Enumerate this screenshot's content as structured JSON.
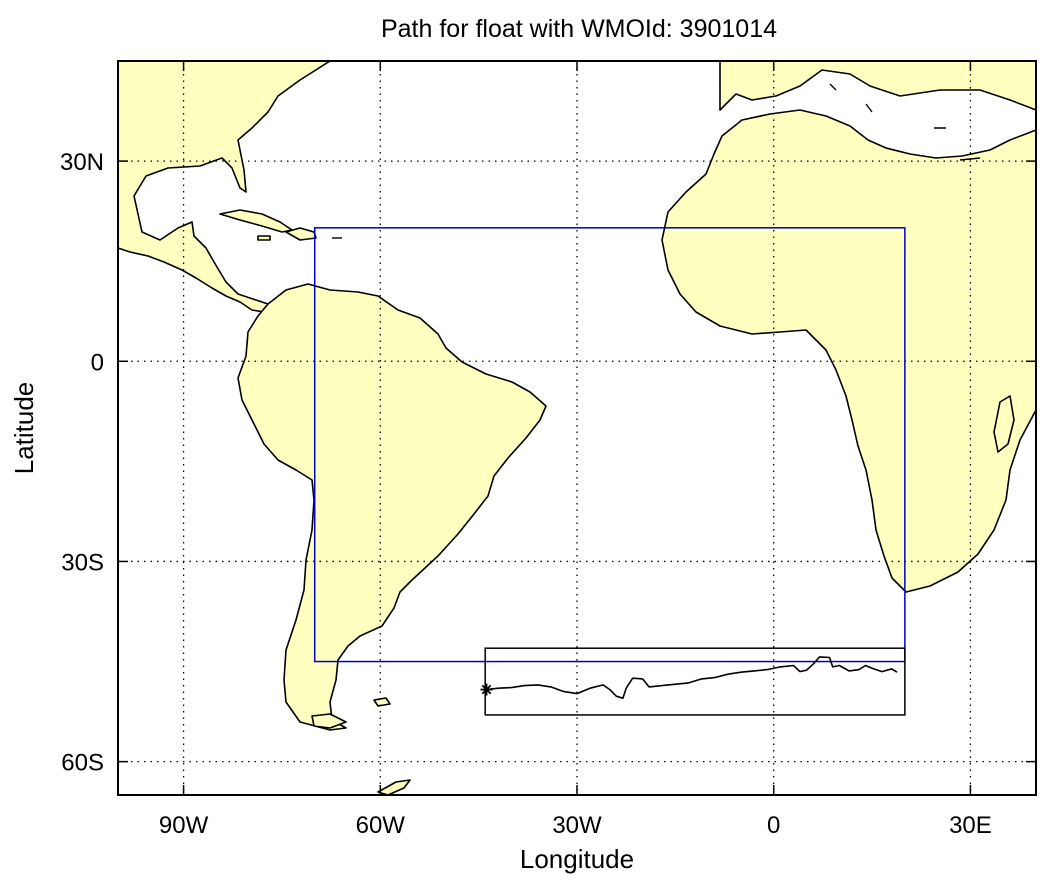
{
  "map": {
    "title": "Path for float with WMOId: 3901014",
    "xlabel": "Longitude",
    "ylabel": "Latitude",
    "lon_range": [
      -100,
      40
    ],
    "lat_range": [
      -65,
      45
    ],
    "x_ticks": [
      {
        "lon": -90,
        "label": "90W"
      },
      {
        "lon": -60,
        "label": "60W"
      },
      {
        "lon": -30,
        "label": "30W"
      },
      {
        "lon": 0,
        "label": "0"
      },
      {
        "lon": 30,
        "label": "30E"
      }
    ],
    "y_ticks": [
      {
        "lat": 30,
        "label": "30N"
      },
      {
        "lat": 0,
        "label": "0"
      },
      {
        "lat": -30,
        "label": "30S"
      },
      {
        "lat": -60,
        "label": "60S"
      }
    ],
    "grid": true,
    "colors": {
      "land": "#ffffc0",
      "ocean": "#ffffff",
      "region_box": "#0000cc",
      "track_box": "#000000",
      "track": "#000000"
    },
    "region_box": {
      "lon": [
        -70,
        20
      ],
      "lat": [
        -45,
        20
      ]
    },
    "track_box": {
      "lon": [
        -44,
        20
      ],
      "lat": [
        -53,
        -43
      ]
    },
    "float_track": [
      [
        -43.8,
        -49.2
      ],
      [
        -42,
        -49.0
      ],
      [
        -40,
        -48.9
      ],
      [
        -38,
        -48.6
      ],
      [
        -36,
        -48.5
      ],
      [
        -34,
        -48.8
      ],
      [
        -32,
        -49.5
      ],
      [
        -30,
        -49.8
      ],
      [
        -28,
        -49.0
      ],
      [
        -26,
        -48.5
      ],
      [
        -25,
        -49.2
      ],
      [
        -24,
        -50.2
      ],
      [
        -23,
        -50.5
      ],
      [
        -22.5,
        -49.0
      ],
      [
        -21.5,
        -47.5
      ],
      [
        -20,
        -47.6
      ],
      [
        -19,
        -48.8
      ],
      [
        -17,
        -48.6
      ],
      [
        -15,
        -48.4
      ],
      [
        -13,
        -48.2
      ],
      [
        -11,
        -47.6
      ],
      [
        -9,
        -47.4
      ],
      [
        -7,
        -46.9
      ],
      [
        -5,
        -46.6
      ],
      [
        -3,
        -46.4
      ],
      [
        -1,
        -46.2
      ],
      [
        1,
        -45.8
      ],
      [
        3,
        -45.6
      ],
      [
        4,
        -46.5
      ],
      [
        5,
        -46.3
      ],
      [
        6,
        -45.4
      ],
      [
        7,
        -44.3
      ],
      [
        8.5,
        -44.4
      ],
      [
        9,
        -45.8
      ],
      [
        10,
        -45.6
      ],
      [
        11.5,
        -46.4
      ],
      [
        13,
        -46.2
      ],
      [
        14,
        -45.6
      ],
      [
        15,
        -46.0
      ],
      [
        16.5,
        -46.5
      ],
      [
        18,
        -46.1
      ],
      [
        18.8,
        -46.6
      ]
    ],
    "deploy_marker": {
      "lon": -43.8,
      "lat": -49.2,
      "symbol": "asterisk"
    }
  }
}
